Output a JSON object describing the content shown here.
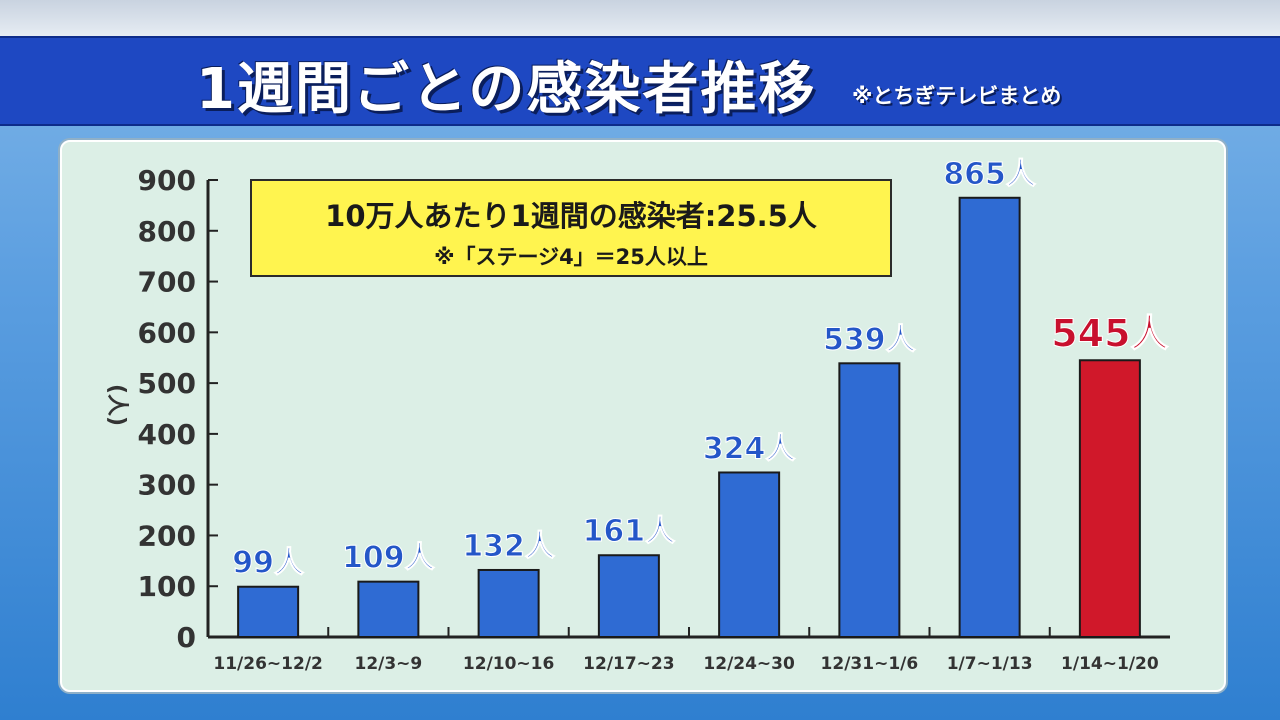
{
  "header": {
    "title": "1週間ごとの感染者推移",
    "note": "※とちぎテレビまとめ"
  },
  "note_box": {
    "main": "10万人あたり1週間の感染者:25.5人",
    "sub": "※「ステージ4」＝25人以上"
  },
  "chart_data": {
    "type": "bar",
    "title": "1週間ごとの感染者推移",
    "ylabel": "(人)",
    "xlabel": "",
    "ylim": [
      0,
      900
    ],
    "yticks": [
      0,
      100,
      200,
      300,
      400,
      500,
      600,
      700,
      800,
      900
    ],
    "categories": [
      "11/26~12/2",
      "12/3~9",
      "12/10~16",
      "12/17~23",
      "12/24~30",
      "12/31~1/6",
      "1/7~1/13",
      "1/14~1/20"
    ],
    "values": [
      99,
      109,
      132,
      161,
      324,
      539,
      865,
      545
    ],
    "data_labels": [
      "99人",
      "109人",
      "132人",
      "161人",
      "324人",
      "539人",
      "865人",
      "545人"
    ],
    "highlight_index": 7,
    "colors": {
      "bar": "#2f6bd3",
      "bar_highlight": "#d0182a",
      "label": "#2456c8",
      "label_highlight": "#c8102e",
      "axis": "#222222"
    },
    "grid": false
  }
}
